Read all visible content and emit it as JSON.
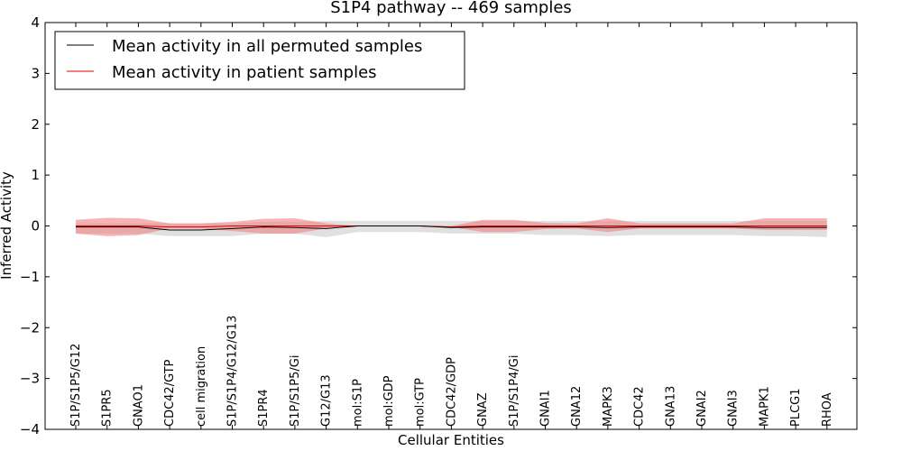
{
  "chart_data": {
    "type": "line",
    "title": "S1P4 pathway -- 469 samples",
    "xlabel": "Cellular Entities",
    "ylabel": "Inferred Activity",
    "ylim": [
      -4,
      4
    ],
    "yticks": [
      4,
      3,
      2,
      1,
      0,
      -1,
      -2,
      -3,
      -4
    ],
    "ytick_labels": [
      "4",
      "3",
      "2",
      "1",
      "0",
      "−1",
      "−2",
      "−3",
      "−4"
    ],
    "grid": false,
    "legend_position": "top-left",
    "categories": [
      "S1P/S1P5/G12",
      "S1PR5",
      "GNAO1",
      "CDC42/GTP",
      "cell migration",
      "S1P/S1P4/G12/G13",
      "S1PR4",
      "S1P/S1P5/Gi",
      "G12/G13",
      "mol:S1P",
      "mol:GDP",
      "mol:GTP",
      "CDC42/GDP",
      "GNAZ",
      "S1P/S1P4/Gi",
      "GNAI1",
      "GNA12",
      "MAPK3",
      "CDC42",
      "GNA13",
      "GNAI2",
      "GNAI3",
      "MAPK1",
      "PLCG1",
      "RHOA"
    ],
    "series": [
      {
        "name": "Mean activity in all permuted samples",
        "color": "#000000",
        "values": [
          -0.02,
          -0.02,
          -0.02,
          -0.08,
          -0.08,
          -0.05,
          -0.02,
          -0.03,
          -0.05,
          0.0,
          0.0,
          0.0,
          -0.03,
          -0.02,
          -0.02,
          -0.02,
          -0.02,
          -0.03,
          -0.02,
          -0.02,
          -0.02,
          -0.02,
          -0.03,
          -0.03,
          -0.03
        ],
        "band_upper": [
          0.05,
          0.05,
          0.05,
          0.05,
          0.05,
          0.05,
          0.08,
          0.08,
          0.1,
          0.1,
          0.1,
          0.1,
          0.1,
          0.1,
          0.1,
          0.1,
          0.1,
          0.1,
          0.1,
          0.1,
          0.1,
          0.1,
          0.1,
          0.1,
          0.1
        ],
        "band_lower": [
          -0.15,
          -0.15,
          -0.15,
          -0.2,
          -0.2,
          -0.2,
          -0.15,
          -0.15,
          -0.22,
          -0.12,
          -0.12,
          -0.12,
          -0.15,
          -0.15,
          -0.15,
          -0.18,
          -0.18,
          -0.2,
          -0.18,
          -0.18,
          -0.18,
          -0.18,
          -0.2,
          -0.2,
          -0.22
        ],
        "band_color": "#cccccc"
      },
      {
        "name": "Mean activity in patient samples",
        "color": "#e00000",
        "values": [
          0.0,
          0.0,
          0.0,
          -0.02,
          -0.02,
          0.0,
          0.0,
          0.0,
          0.0,
          0.0,
          0.0,
          0.0,
          -0.02,
          0.0,
          0.0,
          0.0,
          0.0,
          0.0,
          0.0,
          0.0,
          0.0,
          0.0,
          0.0,
          0.0,
          0.0
        ],
        "band_upper": [
          0.12,
          0.16,
          0.15,
          0.05,
          0.05,
          0.08,
          0.14,
          0.15,
          0.05,
          0.0,
          0.0,
          0.0,
          0.0,
          0.12,
          0.12,
          0.06,
          0.05,
          0.15,
          0.05,
          0.05,
          0.05,
          0.05,
          0.15,
          0.15,
          0.15
        ],
        "band_lower": [
          -0.15,
          -0.2,
          -0.18,
          -0.05,
          -0.05,
          -0.1,
          -0.15,
          -0.15,
          -0.05,
          0.0,
          0.0,
          0.0,
          -0.02,
          -0.12,
          -0.12,
          -0.06,
          -0.05,
          -0.12,
          -0.05,
          -0.05,
          -0.05,
          -0.05,
          -0.08,
          -0.08,
          -0.08
        ],
        "band_color": "#f08080"
      }
    ]
  }
}
